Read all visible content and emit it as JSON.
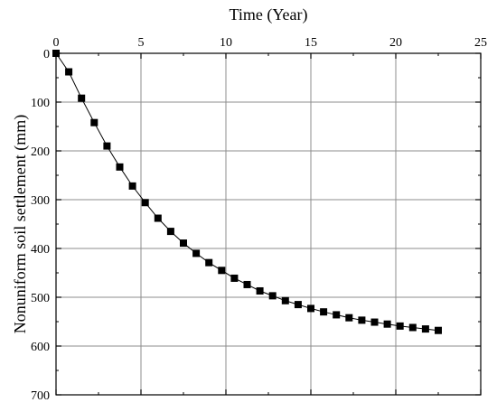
{
  "chart_data": {
    "type": "line",
    "title": "",
    "xlabel": "Time (Year)",
    "ylabel": "Nonuniform soil settlement (mm)",
    "x_axis_position": "top",
    "y_axis_inverted": true,
    "xlim": [
      0,
      25
    ],
    "ylim": [
      0,
      700
    ],
    "xticks": [
      "0",
      "5",
      "10",
      "15",
      "20",
      "25"
    ],
    "yticks": [
      "0",
      "100",
      "200",
      "300",
      "400",
      "500",
      "600",
      "700"
    ],
    "grid": true,
    "legend": "none",
    "series": [
      {
        "marker": "square",
        "color": "#000000",
        "x": [
          0,
          0.75,
          1.5,
          2.25,
          3.0,
          3.75,
          4.5,
          5.25,
          6.0,
          6.75,
          7.5,
          8.25,
          9.0,
          9.75,
          10.5,
          11.25,
          12.0,
          12.75,
          13.5,
          14.25,
          15.0,
          15.75,
          16.5,
          17.25,
          18.0,
          18.75,
          19.5,
          20.25,
          21.0,
          21.75,
          22.5
        ],
        "y": [
          0,
          38,
          92,
          142,
          190,
          233,
          272,
          306,
          338,
          365,
          389,
          410,
          429,
          445,
          461,
          474,
          487,
          497,
          507,
          515,
          523,
          530,
          536,
          542,
          547,
          551,
          555,
          559,
          562,
          565,
          568
        ]
      }
    ]
  }
}
